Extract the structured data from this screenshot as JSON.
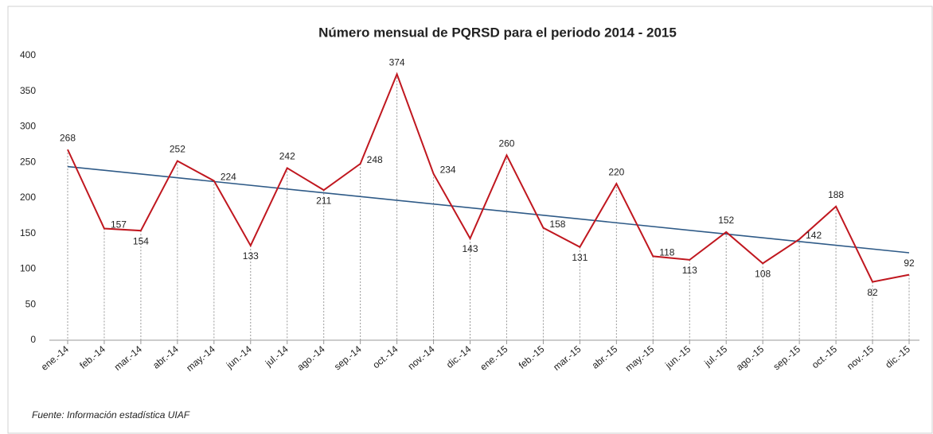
{
  "chart_data": {
    "type": "line",
    "title": "Número mensual de PQRSD para el periodo 2014 - 2015",
    "categories": [
      "ene.-14",
      "feb.-14",
      "mar.-14",
      "abr.-14",
      "may.-14",
      "jun.-14",
      "jul.-14",
      "ago.-14",
      "sep.-14",
      "oct.-14",
      "nov.-14",
      "dic.-14",
      "ene.-15",
      "feb.-15",
      "mar.-15",
      "abr.-15",
      "may.-15",
      "jun.-15",
      "jul.-15",
      "ago.-15",
      "sep.-15",
      "oct.-15",
      "nov.-15",
      "dic.-15"
    ],
    "series": [
      {
        "name": "PQRSD",
        "color": "#c0171f",
        "values": [
          268,
          157,
          154,
          252,
          224,
          133,
          242,
          211,
          248,
          374,
          234,
          143,
          260,
          158,
          131,
          220,
          118,
          113,
          152,
          108,
          142,
          188,
          82,
          92
        ]
      }
    ],
    "trendline": "linear",
    "trendline_color": "#2e5a87",
    "ylim": [
      0,
      400
    ],
    "yticks": [
      0,
      50,
      100,
      150,
      200,
      250,
      300,
      350,
      400
    ],
    "drop_lines": true,
    "source": "Fuente: Información estadística UIAF"
  }
}
